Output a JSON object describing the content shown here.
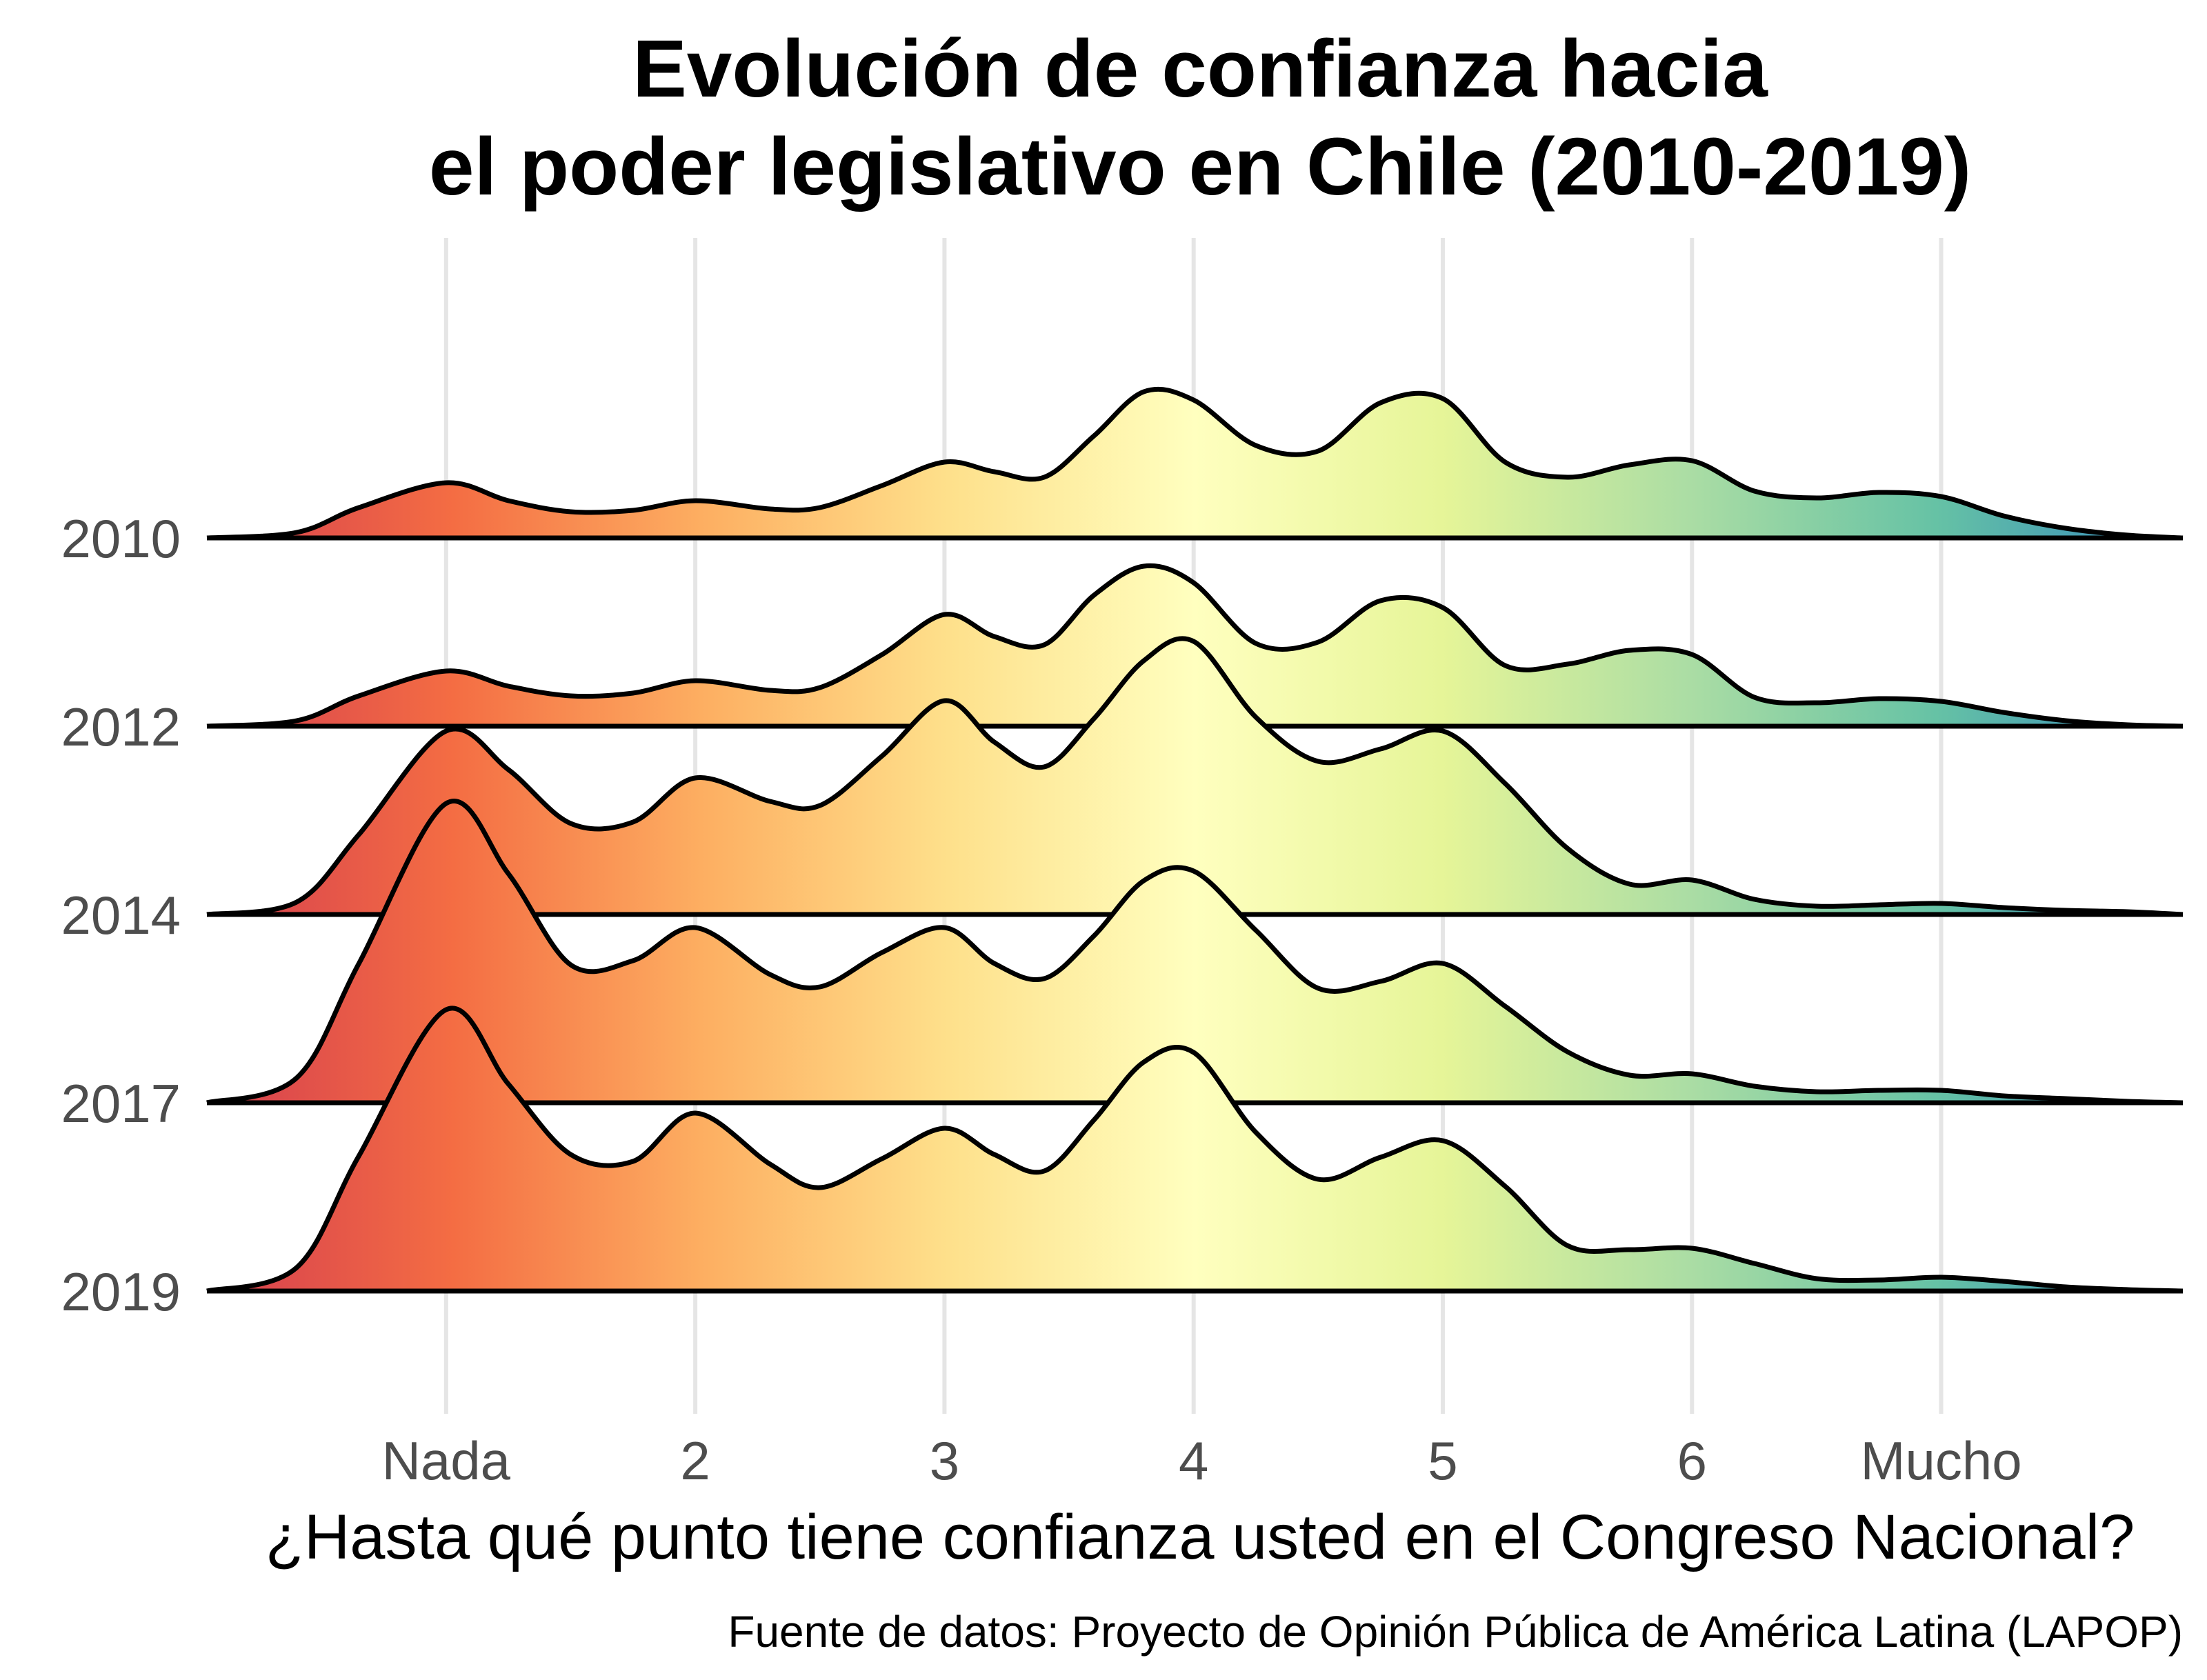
{
  "chart_data": {
    "type": "ridgeline",
    "title_lines": [
      "Evolución de confianza hacia",
      "el poder legislativo en Chile (2010-2019)"
    ],
    "xlabel": "¿Hasta qué punto tiene confianza usted en el Congreso Nacional?",
    "caption": "Fuente de datos: Proyecto de Opinión Pública de América Latina (LAPOP)",
    "x_ticks": [
      {
        "value": 1,
        "label": "Nada"
      },
      {
        "value": 2,
        "label": "2"
      },
      {
        "value": 3,
        "label": "3"
      },
      {
        "value": 4,
        "label": "4"
      },
      {
        "value": 5,
        "label": "5"
      },
      {
        "value": 6,
        "label": "6"
      },
      {
        "value": 7,
        "label": "Mucho"
      }
    ],
    "xlim": [
      0.04,
      7.97
    ],
    "grid": true,
    "fill_palette": [
      "#d53e4f",
      "#f46d43",
      "#fdae61",
      "#fee08b",
      "#ffffbf",
      "#e6f598",
      "#abdda4",
      "#66c2a5",
      "#3288bd"
    ],
    "series": [
      {
        "name": "2010",
        "x": [
          0.04,
          0.4,
          0.65,
          1.0,
          1.25,
          1.5,
          1.75,
          2.0,
          2.3,
          2.5,
          2.75,
          3.0,
          3.2,
          3.4,
          3.6,
          3.8,
          4.0,
          4.25,
          4.5,
          4.75,
          5.0,
          5.25,
          5.5,
          5.75,
          6.0,
          6.25,
          6.5,
          6.75,
          7.0,
          7.25,
          7.5,
          7.75,
          7.97
        ],
        "y": [
          0.0,
          0.04,
          0.22,
          0.4,
          0.27,
          0.19,
          0.2,
          0.27,
          0.21,
          0.22,
          0.38,
          0.55,
          0.48,
          0.44,
          0.74,
          1.06,
          1.0,
          0.67,
          0.63,
          0.98,
          1.01,
          0.55,
          0.44,
          0.53,
          0.56,
          0.34,
          0.29,
          0.33,
          0.3,
          0.16,
          0.07,
          0.02,
          0.0
        ]
      },
      {
        "name": "2012",
        "x": [
          0.04,
          0.4,
          0.65,
          1.0,
          1.25,
          1.5,
          1.75,
          2.0,
          2.3,
          2.5,
          2.75,
          3.0,
          3.2,
          3.4,
          3.6,
          3.8,
          4.0,
          4.25,
          4.5,
          4.75,
          5.0,
          5.25,
          5.5,
          5.75,
          6.0,
          6.25,
          6.5,
          6.75,
          7.0,
          7.25,
          7.5,
          7.75,
          7.97
        ],
        "y": [
          0.0,
          0.04,
          0.22,
          0.4,
          0.29,
          0.22,
          0.24,
          0.33,
          0.26,
          0.28,
          0.52,
          0.81,
          0.65,
          0.59,
          0.95,
          1.16,
          1.04,
          0.6,
          0.61,
          0.91,
          0.86,
          0.44,
          0.45,
          0.55,
          0.52,
          0.21,
          0.17,
          0.2,
          0.18,
          0.1,
          0.04,
          0.01,
          0.0
        ]
      },
      {
        "name": "2014",
        "x": [
          0.04,
          0.4,
          0.65,
          1.0,
          1.25,
          1.5,
          1.75,
          2.0,
          2.3,
          2.5,
          2.75,
          3.0,
          3.2,
          3.4,
          3.6,
          3.8,
          4.0,
          4.25,
          4.5,
          4.75,
          5.0,
          5.25,
          5.5,
          5.75,
          6.0,
          6.25,
          6.5,
          6.75,
          7.0,
          7.25,
          7.5,
          7.75,
          7.97
        ],
        "y": [
          0.0,
          0.09,
          0.58,
          1.33,
          1.05,
          0.66,
          0.67,
          0.99,
          0.82,
          0.79,
          1.15,
          1.55,
          1.25,
          1.07,
          1.42,
          1.84,
          1.98,
          1.43,
          1.11,
          1.2,
          1.33,
          0.95,
          0.48,
          0.22,
          0.25,
          0.11,
          0.06,
          0.07,
          0.08,
          0.05,
          0.03,
          0.02,
          0.0
        ]
      },
      {
        "name": "2017",
        "x": [
          0.04,
          0.4,
          0.65,
          1.0,
          1.25,
          1.5,
          1.75,
          2.0,
          2.3,
          2.5,
          2.75,
          3.0,
          3.2,
          3.4,
          3.6,
          3.8,
          4.0,
          4.25,
          4.5,
          4.75,
          5.0,
          5.25,
          5.5,
          5.75,
          6.0,
          6.25,
          6.5,
          6.75,
          7.0,
          7.25,
          7.5,
          7.75,
          7.97
        ],
        "y": [
          0.0,
          0.18,
          1.01,
          2.17,
          1.66,
          1.0,
          1.03,
          1.27,
          0.93,
          0.84,
          1.09,
          1.27,
          1.01,
          0.9,
          1.21,
          1.61,
          1.68,
          1.25,
          0.83,
          0.88,
          1.01,
          0.7,
          0.37,
          0.2,
          0.21,
          0.12,
          0.08,
          0.09,
          0.09,
          0.05,
          0.03,
          0.01,
          0.0
        ]
      },
      {
        "name": "2019",
        "x": [
          0.04,
          0.4,
          0.65,
          1.0,
          1.25,
          1.5,
          1.75,
          2.0,
          2.3,
          2.5,
          2.75,
          3.0,
          3.2,
          3.4,
          3.6,
          3.8,
          4.0,
          4.25,
          4.5,
          4.75,
          5.0,
          5.25,
          5.5,
          5.75,
          6.0,
          6.25,
          6.5,
          6.75,
          7.0,
          7.25,
          7.5,
          7.75,
          7.97
        ],
        "y": [
          0.0,
          0.17,
          0.98,
          2.04,
          1.5,
          0.99,
          0.94,
          1.29,
          0.92,
          0.75,
          0.96,
          1.18,
          0.99,
          0.87,
          1.24,
          1.66,
          1.73,
          1.15,
          0.81,
          0.97,
          1.09,
          0.76,
          0.33,
          0.3,
          0.31,
          0.2,
          0.09,
          0.08,
          0.1,
          0.07,
          0.03,
          0.01,
          0.0
        ]
      }
    ]
  }
}
